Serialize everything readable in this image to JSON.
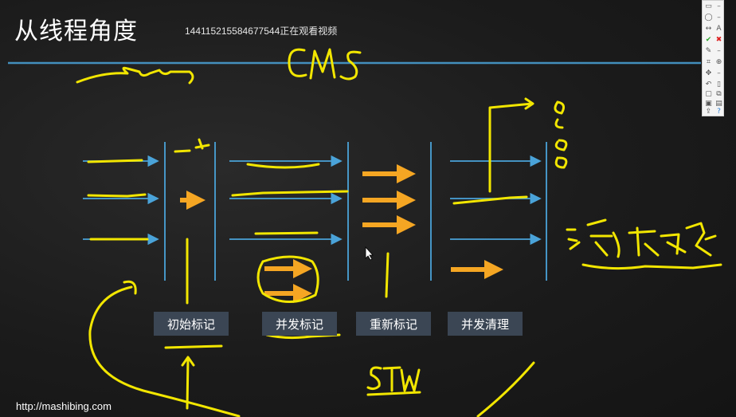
{
  "header": {
    "title": "从线程角度",
    "viewer_notice": "144115215584677544正在观看视频"
  },
  "phases": [
    {
      "label": "初始标记"
    },
    {
      "label": "并发标记"
    },
    {
      "label": "重新标记"
    },
    {
      "label": "并发清理"
    }
  ],
  "footer": {
    "url": "http://mashibing.com"
  },
  "toolbar": {
    "tools": [
      "rectangle-icon",
      "minus-icon",
      "ellipse-icon",
      "minus-icon",
      "arrow-icon",
      "text-icon",
      "check-icon",
      "close-icon",
      "highlighter-icon",
      "minus-icon",
      "crop-icon",
      "zoom-icon",
      "move-icon",
      "minus-icon",
      "undo-icon",
      "trash-icon",
      "page-icon",
      "copy-icon",
      "save-icon",
      "film-icon",
      "share-icon",
      "info-icon"
    ],
    "text_label": "A",
    "info_label": "?"
  },
  "colors": {
    "board": "#1c1c1c",
    "thread_line": "#4aa3d9",
    "annotation": "#f2e600",
    "orange_arrow": "#f5a623",
    "phase_box": "#3b4654"
  }
}
